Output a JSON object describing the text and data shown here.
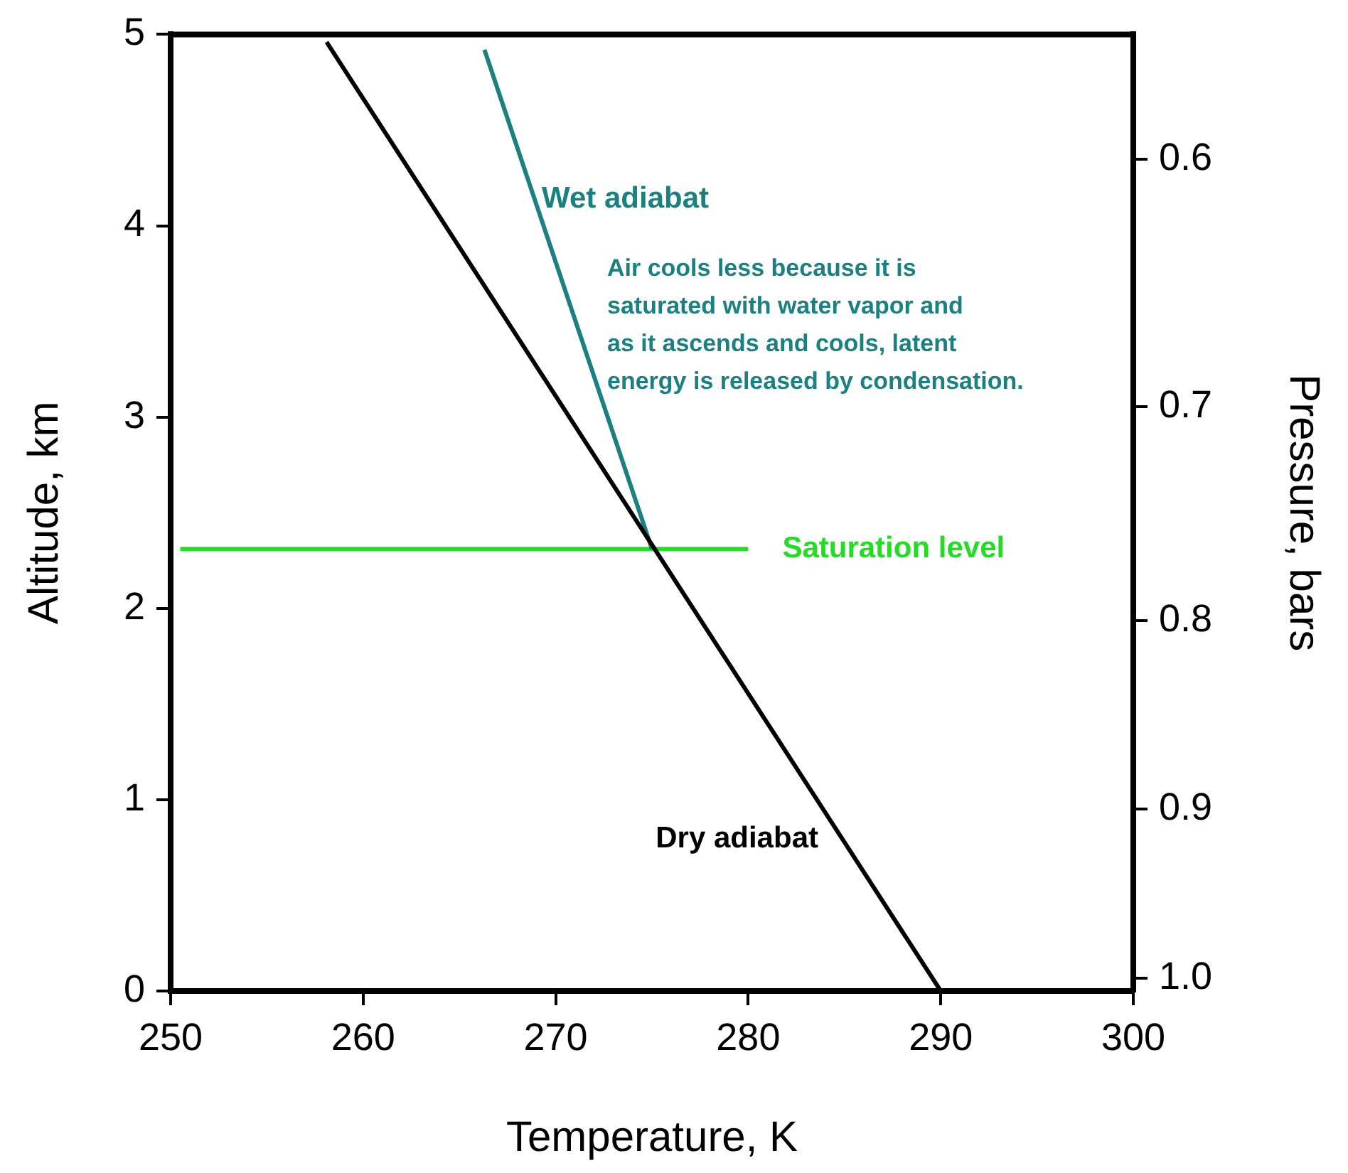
{
  "chart_data": {
    "type": "line",
    "xlabel": "Temperature, K",
    "ylabel": "Altitude, km",
    "y2label": "Pressure, bars",
    "xlim": [
      250,
      300
    ],
    "xticks": [
      250,
      260,
      270,
      280,
      290,
      300
    ],
    "ylim": [
      0,
      5
    ],
    "yticks": [
      0,
      1,
      2,
      3,
      4,
      5
    ],
    "y2lim": [
      1.008,
      0.555
    ],
    "log": "y2",
    "y2ticks": [
      {
        "value": 0.6,
        "label": "0.6"
      },
      {
        "value": 0.7,
        "label": "0.7"
      },
      {
        "value": 0.8,
        "label": "0.8"
      },
      {
        "value": 0.9,
        "label": "0.9"
      },
      {
        "value": 1,
        "label": "1.0"
      }
    ],
    "grid": false,
    "legend": false,
    "marker": "none",
    "line_style": "solid",
    "series": [
      {
        "name": "Dry adiabat",
        "color": "#000000",
        "x": [
          290,
          258.1
        ],
        "values": [
          0,
          4.96
        ]
      },
      {
        "name": "Wet adiabat",
        "color": "#1a8080",
        "x": [
          275,
          266.3
        ],
        "values": [
          2.31,
          4.92
        ]
      },
      {
        "name": "Saturation level",
        "color": "#22dd22",
        "x": [
          250.5,
          280
        ],
        "values": [
          2.31,
          2.31
        ]
      }
    ],
    "annotations": [
      "Air cools less because it is\nsaturated with water vapor and\nas it ascends and cools, latent\nenergy is released by condensation."
    ]
  }
}
